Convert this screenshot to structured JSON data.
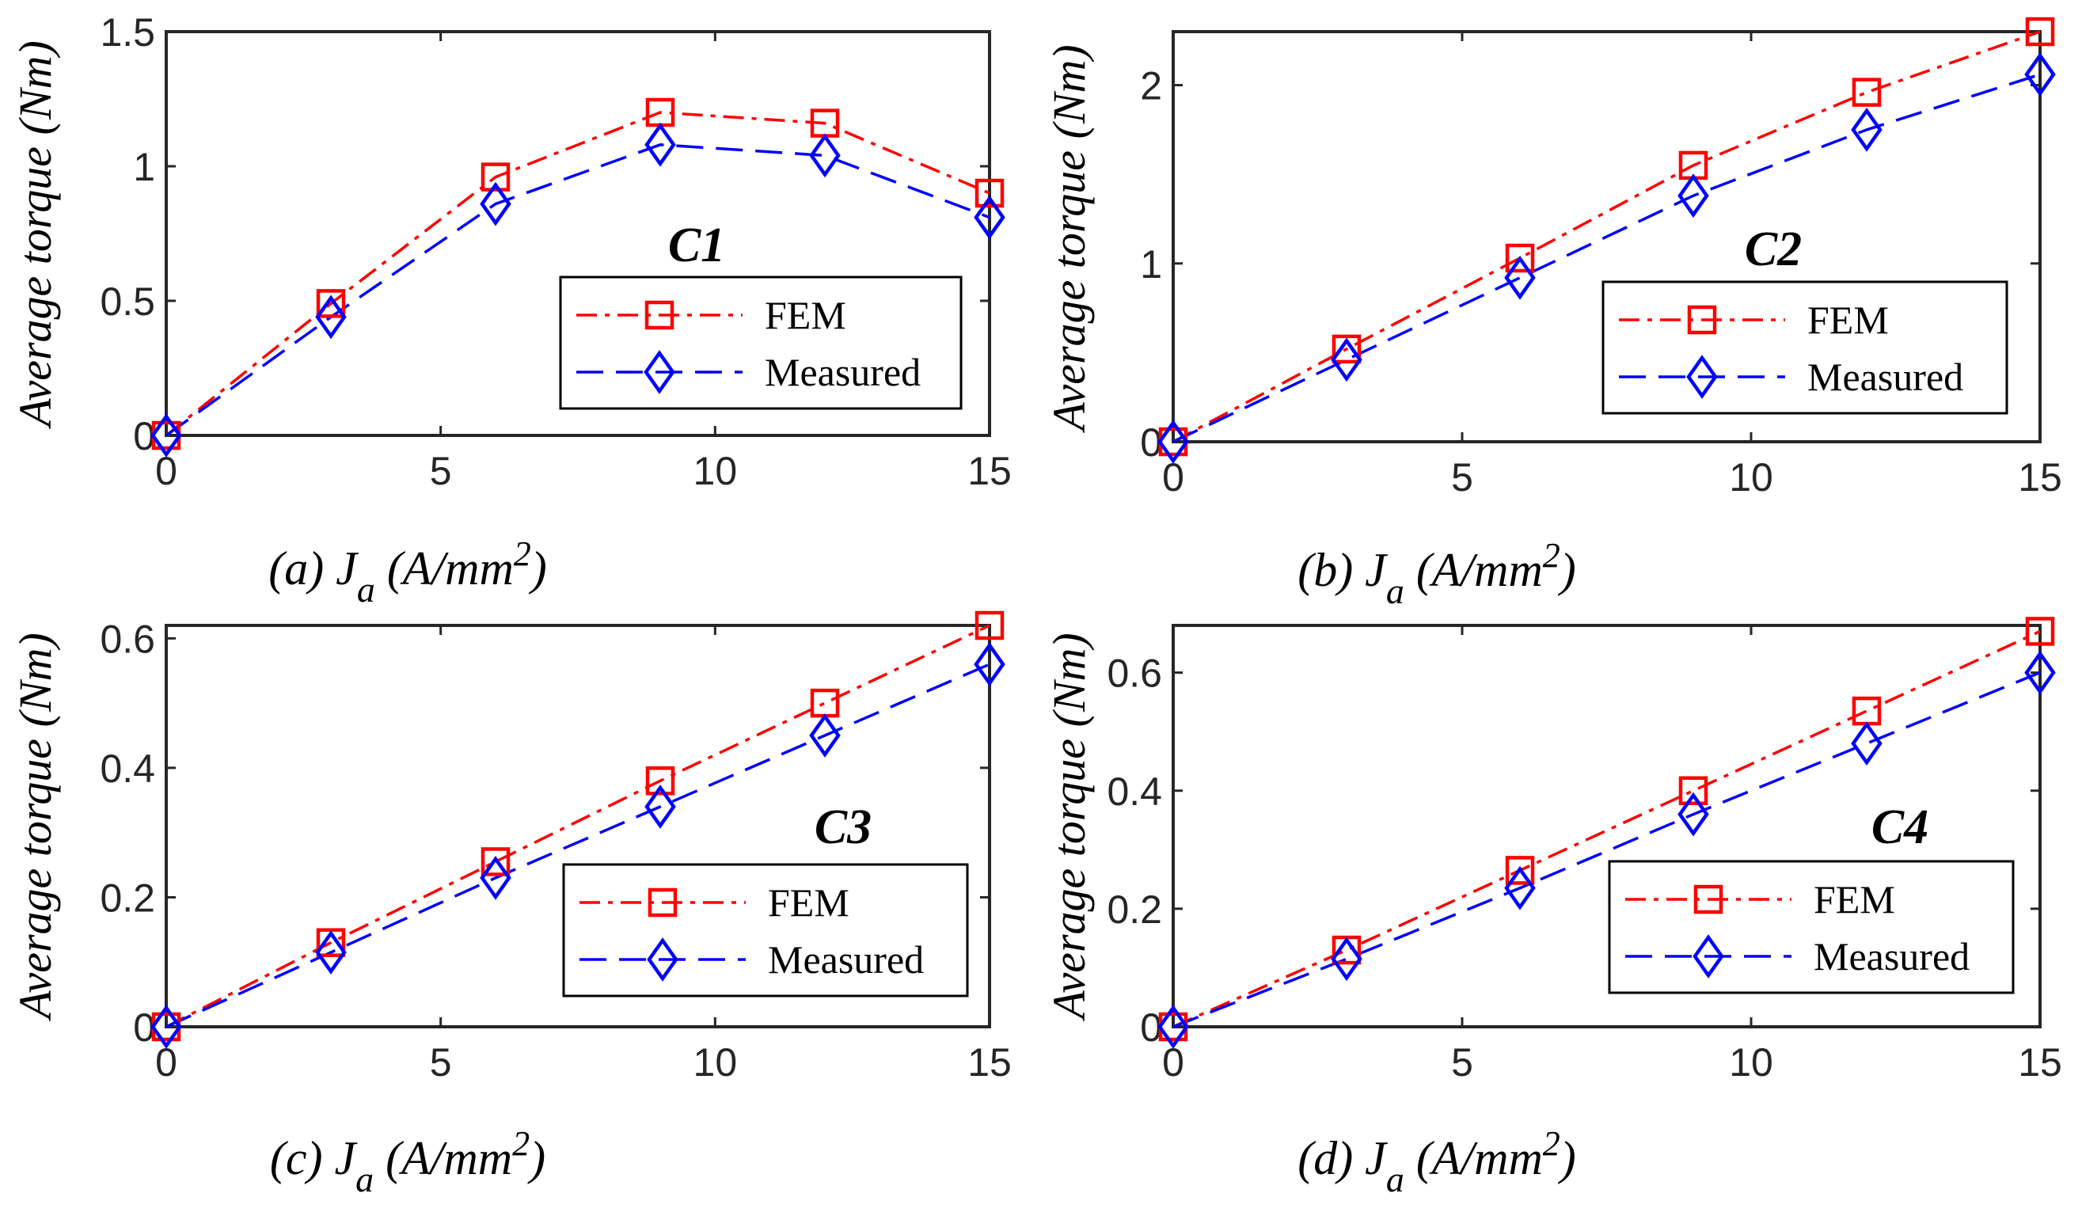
{
  "colors": {
    "fem": "#ff0000",
    "measured": "#0000ff",
    "axis": "#262626"
  },
  "legend": {
    "fem_label": "FEM",
    "measured_label": "Measured"
  },
  "chart_data": [
    {
      "type": "line",
      "panel": "a",
      "tag": "C1",
      "caption": {
        "prefix": "(a) J",
        "sub": "a",
        "mid": " (A/mm",
        "sup": "2",
        "suffix": ")"
      },
      "ylabel": "Average torque (Nm)",
      "xlim": [
        0,
        15
      ],
      "ylim": [
        0,
        1.5
      ],
      "xticks": [
        0,
        5,
        10,
        15
      ],
      "yticks": [
        0,
        0.5,
        1,
        1.5
      ],
      "x": [
        0,
        3,
        6,
        9,
        12,
        15
      ],
      "series": [
        {
          "name": "FEM",
          "marker": "square",
          "style": "dash-dot",
          "values": [
            0,
            0.49,
            0.96,
            1.2,
            1.16,
            0.9
          ]
        },
        {
          "name": "Measured",
          "marker": "diamond",
          "style": "dashed",
          "values": [
            0,
            0.44,
            0.86,
            1.08,
            1.04,
            0.81
          ]
        }
      ]
    },
    {
      "type": "line",
      "panel": "b",
      "tag": "C2",
      "caption": {
        "prefix": "(b) J",
        "sub": "a",
        "mid": " (A/mm",
        "sup": "2",
        "suffix": ")"
      },
      "ylabel": "Average torque (Nm)",
      "xlim": [
        0,
        15
      ],
      "ylim": [
        0,
        2.3
      ],
      "xticks": [
        0,
        5,
        10,
        15
      ],
      "yticks": [
        0,
        1,
        2
      ],
      "x": [
        0,
        3,
        6,
        9,
        12,
        15
      ],
      "series": [
        {
          "name": "FEM",
          "marker": "square",
          "style": "dash-dot",
          "values": [
            0,
            0.52,
            1.03,
            1.55,
            1.96,
            2.3
          ]
        },
        {
          "name": "Measured",
          "marker": "diamond",
          "style": "dashed",
          "values": [
            0,
            0.46,
            0.92,
            1.38,
            1.75,
            2.06
          ]
        }
      ]
    },
    {
      "type": "line",
      "panel": "c",
      "tag": "C3",
      "caption": {
        "prefix": "(c) J",
        "sub": "a",
        "mid": " (A/mm",
        "sup": "2",
        "suffix": ")"
      },
      "ylabel": "Average torque (Nm)",
      "xlim": [
        0,
        15
      ],
      "ylim": [
        0,
        0.62
      ],
      "xticks": [
        0,
        5,
        10,
        15
      ],
      "yticks": [
        0,
        0.2,
        0.4,
        0.6
      ],
      "x": [
        0,
        3,
        6,
        9,
        12,
        15
      ],
      "series": [
        {
          "name": "FEM",
          "marker": "square",
          "style": "dash-dot",
          "values": [
            0,
            0.13,
            0.255,
            0.38,
            0.5,
            0.62
          ]
        },
        {
          "name": "Measured",
          "marker": "diamond",
          "style": "dashed",
          "values": [
            0,
            0.115,
            0.23,
            0.34,
            0.45,
            0.56
          ]
        }
      ]
    },
    {
      "type": "line",
      "panel": "d",
      "tag": "C4",
      "caption": {
        "prefix": "(d) J",
        "sub": "a",
        "mid": " (A/mm",
        "sup": "2",
        "suffix": ")"
      },
      "ylabel": "Average torque (Nm)",
      "xlim": [
        0,
        15
      ],
      "ylim": [
        0,
        0.68
      ],
      "xticks": [
        0,
        5,
        10,
        15
      ],
      "yticks": [
        0,
        0.2,
        0.4,
        0.6
      ],
      "x": [
        0,
        3,
        6,
        9,
        12,
        15
      ],
      "series": [
        {
          "name": "FEM",
          "marker": "square",
          "style": "dash-dot",
          "values": [
            0,
            0.13,
            0.265,
            0.4,
            0.535,
            0.67
          ]
        },
        {
          "name": "Measured",
          "marker": "diamond",
          "style": "dashed",
          "values": [
            0,
            0.115,
            0.235,
            0.36,
            0.48,
            0.6
          ]
        }
      ]
    }
  ]
}
